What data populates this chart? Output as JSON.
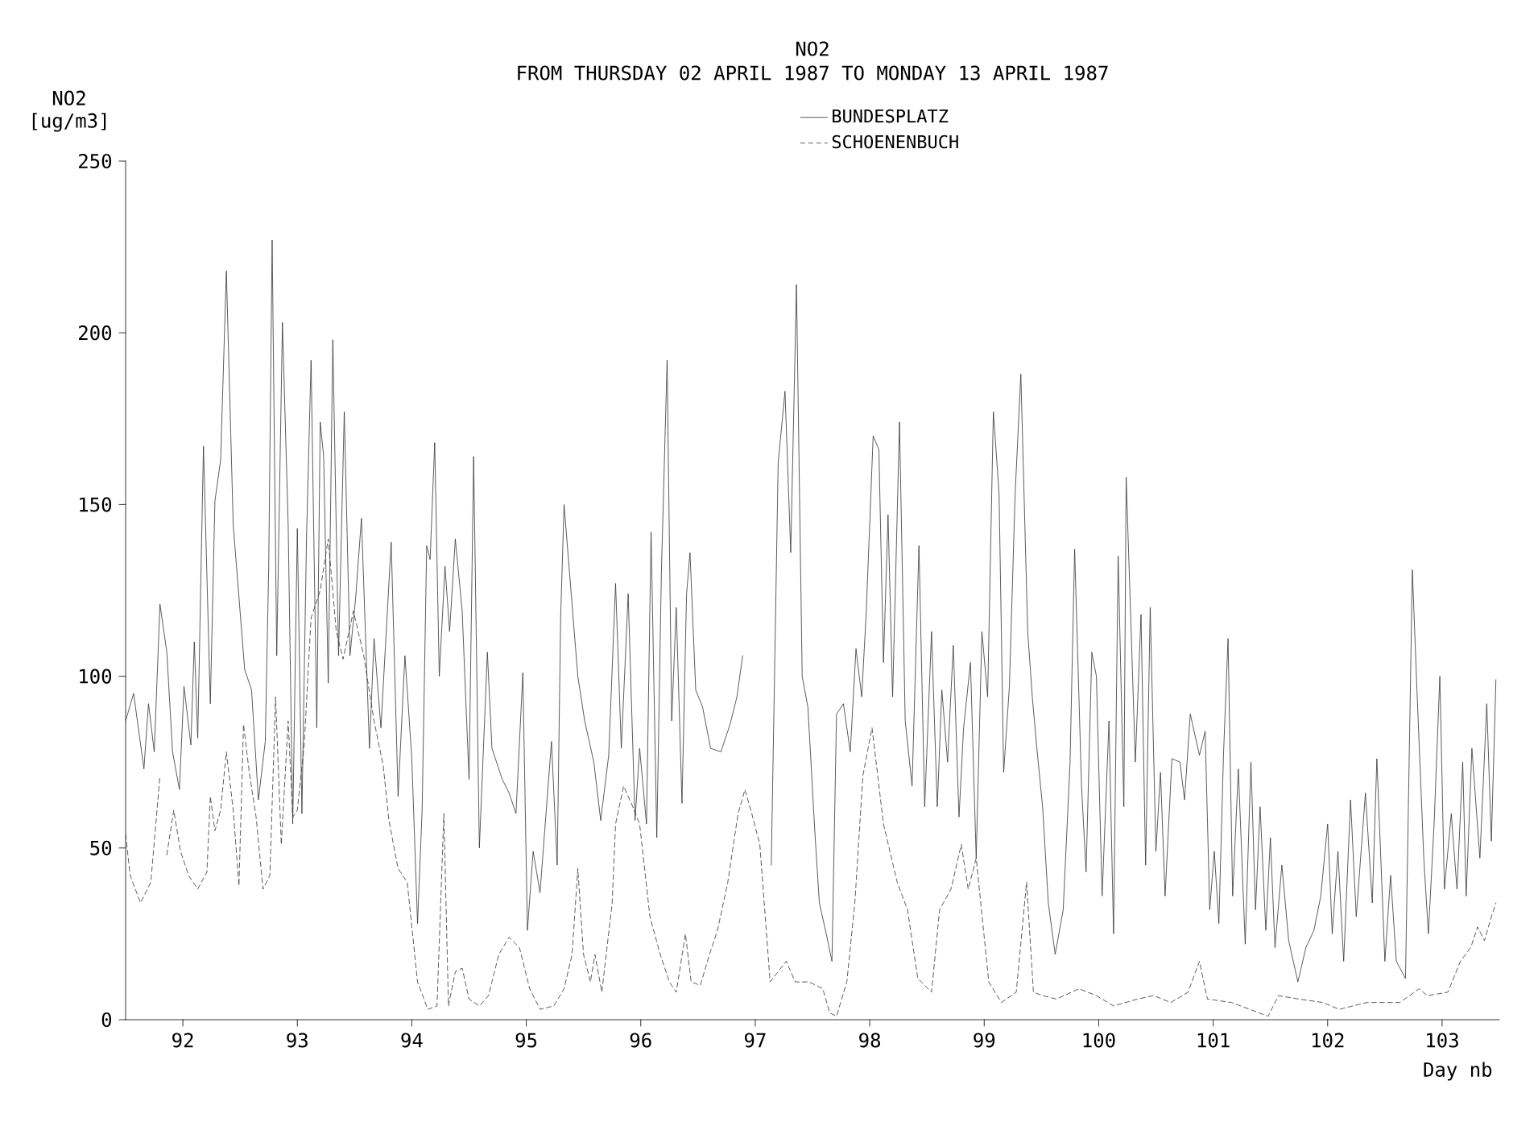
{
  "chart_data": {
    "type": "line",
    "title": "NO2",
    "subtitle": "FROM THURSDAY 02 APRIL 1987 TO MONDAY 13 APRIL 1987",
    "xlabel": "Day nb",
    "ylabel": "NO2 [ug/m3]",
    "xlim": [
      91.5,
      103.5
    ],
    "ylim": [
      0,
      250
    ],
    "xticks": [
      92,
      93,
      94,
      95,
      96,
      97,
      98,
      99,
      100,
      101,
      102,
      103
    ],
    "yticks": [
      0,
      50,
      100,
      150,
      200,
      250
    ],
    "legend": "top",
    "series": [
      {
        "name": "BUNDESPLATZ",
        "color": "#333333",
        "line_style": "solid",
        "x": [
          91.5,
          91.57,
          91.66,
          91.7,
          91.75,
          91.8,
          91.86,
          91.91,
          91.97,
          92.01,
          92.07,
          92.1,
          92.13,
          92.18,
          92.24,
          92.28,
          92.33,
          92.38,
          92.44,
          92.54,
          92.6,
          92.66,
          92.72,
          92.75,
          92.78,
          92.82,
          92.87,
          92.92,
          92.96,
          93.0,
          93.04,
          93.08,
          93.12,
          93.17,
          93.2,
          93.23,
          93.27,
          93.31,
          93.36,
          93.41,
          93.46,
          93.51,
          93.56,
          93.63,
          93.67,
          93.73,
          93.82,
          93.88,
          93.94,
          94.0,
          94.05,
          94.09,
          94.13,
          94.16,
          94.2,
          94.24,
          94.29,
          94.33,
          94.38,
          94.44,
          94.5,
          94.54,
          94.59,
          94.66,
          94.7,
          94.79,
          94.85,
          94.91,
          94.97,
          95.01,
          95.06,
          95.12,
          95.22,
          95.27,
          95.3,
          95.33,
          95.39,
          95.45,
          95.51,
          95.59,
          95.65,
          95.72,
          95.78,
          95.83,
          95.89,
          95.95,
          95.99,
          96.05,
          96.09,
          96.14,
          96.18,
          96.23,
          96.27,
          96.31,
          96.36,
          96.4,
          96.43,
          96.48,
          96.54,
          96.61,
          96.7,
          96.78,
          96.84,
          96.89,
          97.0,
          97.14,
          97.2,
          97.26,
          97.31,
          97.36,
          97.41,
          97.46,
          97.52,
          97.56,
          97.62,
          97.67,
          97.71,
          97.77,
          97.83,
          97.88,
          97.93,
          97.97,
          98.03,
          98.08,
          98.12,
          98.16,
          98.2,
          98.26,
          98.31,
          98.37,
          98.43,
          98.48,
          98.54,
          98.59,
          98.63,
          98.68,
          98.73,
          98.78,
          98.82,
          98.88,
          98.93,
          98.98,
          99.03,
          99.08,
          99.13,
          99.17,
          99.22,
          99.27,
          99.32,
          99.38,
          99.42,
          99.46,
          99.51,
          99.56,
          99.62,
          99.69,
          99.75,
          99.79,
          99.85,
          99.89,
          99.94,
          99.98,
          100.03,
          100.09,
          100.13,
          100.17,
          100.22,
          100.24,
          100.28,
          100.32,
          100.37,
          100.41,
          100.45,
          100.5,
          100.54,
          100.58,
          100.64,
          100.71,
          100.75,
          100.8,
          100.84,
          100.88,
          100.93,
          100.97,
          101.01,
          101.05,
          101.09,
          101.13,
          101.17,
          101.22,
          101.28,
          101.33,
          101.37,
          101.41,
          101.46,
          101.5,
          101.54,
          101.6,
          101.66,
          101.74,
          101.81,
          101.88,
          101.94,
          102.0,
          102.04,
          102.09,
          102.14,
          102.2,
          102.25,
          102.33,
          102.39,
          102.43,
          102.5,
          102.55,
          102.6,
          102.68,
          102.74,
          102.78,
          102.84,
          102.88,
          102.93,
          102.98,
          103.02,
          103.08,
          103.13,
          103.18,
          103.21,
          103.26,
          103.33,
          103.39,
          103.43,
          103.47
        ],
        "values": [
          87,
          95,
          73,
          92,
          78,
          121,
          107,
          78,
          67,
          97,
          80,
          110,
          82,
          167,
          92,
          151,
          163,
          218,
          144,
          102,
          96,
          64,
          81,
          132,
          227,
          106,
          203,
          144,
          57,
          143,
          60,
          140,
          192,
          85,
          174,
          164,
          98,
          198,
          106,
          177,
          106,
          123,
          146,
          79,
          111,
          85,
          139,
          65,
          106,
          76,
          28,
          61,
          138,
          134,
          168,
          100,
          132,
          113,
          140,
          119,
          70,
          164,
          50,
          107,
          79,
          70,
          66,
          60,
          101,
          26,
          49,
          37,
          81,
          45,
          117,
          150,
          125,
          100,
          87,
          75,
          58,
          77,
          127,
          79,
          124,
          58,
          79,
          57,
          142,
          53,
          130,
          192,
          87,
          120,
          63,
          124,
          136,
          96,
          91,
          79,
          78,
          86,
          94,
          106,
          null,
          45,
          162,
          183,
          136,
          214,
          100,
          91,
          55,
          34,
          25,
          17,
          89,
          92,
          78,
          108,
          94,
          119,
          170,
          166,
          104,
          147,
          94,
          174,
          87,
          68,
          138,
          62,
          113,
          62,
          96,
          75,
          109,
          59,
          85,
          104,
          47,
          113,
          94,
          177,
          153,
          72,
          97,
          153,
          188,
          113,
          94,
          79,
          62,
          34,
          19,
          32,
          75,
          137,
          68,
          43,
          107,
          100,
          36,
          87,
          25,
          135,
          62,
          158,
          117,
          75,
          118,
          45,
          120,
          49,
          72,
          36,
          76,
          75,
          64,
          89,
          83,
          77,
          84,
          32,
          49,
          28,
          77,
          111,
          36,
          73,
          22,
          75,
          32,
          62,
          26,
          53,
          21,
          45,
          23,
          11,
          21,
          26,
          36,
          57,
          25,
          49,
          17,
          64,
          30,
          66,
          34,
          76,
          17,
          42,
          17,
          12,
          131,
          96,
          47,
          25,
          57,
          100,
          38,
          60,
          38,
          75,
          36,
          79,
          47,
          92,
          52,
          99
        ]
      },
      {
        "name": "SCHOENENBUCH",
        "color": "#333333",
        "line_style": "dashed",
        "x": [
          91.5,
          91.54,
          91.63,
          91.72,
          91.8,
          91.83,
          91.86,
          91.92,
          91.98,
          92.05,
          92.13,
          92.21,
          92.24,
          92.28,
          92.33,
          92.38,
          92.44,
          92.49,
          92.53,
          92.58,
          92.64,
          92.7,
          92.76,
          92.81,
          92.86,
          92.92,
          92.96,
          93.0,
          93.06,
          93.12,
          93.2,
          93.27,
          93.34,
          93.4,
          93.49,
          93.58,
          93.67,
          93.75,
          93.8,
          93.88,
          93.96,
          94.05,
          94.14,
          94.22,
          94.28,
          94.32,
          94.38,
          94.44,
          94.5,
          94.59,
          94.67,
          94.76,
          94.85,
          94.94,
          95.03,
          95.12,
          95.24,
          95.33,
          95.4,
          95.45,
          95.5,
          95.56,
          95.6,
          95.66,
          95.75,
          95.78,
          95.85,
          95.93,
          95.99,
          96.08,
          96.17,
          96.25,
          96.31,
          96.39,
          96.44,
          96.52,
          96.6,
          96.67,
          96.76,
          96.85,
          96.91,
          96.97,
          97.04,
          97.13,
          97.2,
          97.27,
          97.35,
          97.47,
          97.59,
          97.65,
          97.71,
          97.8,
          97.87,
          97.94,
          98.02,
          98.12,
          98.24,
          98.33,
          98.42,
          98.54,
          98.61,
          98.71,
          98.8,
          98.86,
          98.93,
          99.04,
          99.15,
          99.28,
          99.37,
          99.43,
          99.51,
          99.63,
          99.83,
          99.98,
          100.13,
          100.34,
          100.48,
          100.63,
          100.78,
          100.88,
          100.95,
          101.16,
          101.4,
          101.48,
          101.57,
          101.75,
          101.96,
          102.1,
          102.34,
          102.63,
          102.8,
          102.87,
          103.05,
          103.16,
          103.25,
          103.31,
          103.37,
          103.43,
          103.47
        ],
        "values": [
          54,
          42,
          34,
          40,
          71,
          null,
          48,
          61,
          49,
          42,
          38,
          43,
          65,
          55,
          61,
          78,
          61,
          39,
          86,
          72,
          59,
          38,
          42,
          94,
          51,
          87,
          59,
          61,
          80,
          117,
          125,
          140,
          113,
          105,
          119,
          106,
          87,
          74,
          58,
          44,
          40,
          11,
          3,
          4,
          60,
          4,
          14,
          15,
          6,
          4,
          7,
          19,
          24,
          21,
          9,
          3,
          4,
          9,
          19,
          44,
          19,
          11,
          19,
          8,
          34,
          57,
          68,
          62,
          57,
          30,
          19,
          11,
          8,
          25,
          11,
          10,
          19,
          26,
          40,
          60,
          67,
          60,
          51,
          11,
          14,
          17,
          11,
          11,
          9,
          2,
          1,
          11,
          34,
          71,
          85,
          57,
          40,
          32,
          12,
          8,
          32,
          38,
          51,
          38,
          47,
          11,
          5,
          8,
          40,
          8,
          7,
          6,
          9,
          7,
          4,
          6,
          7,
          5,
          8,
          17,
          6,
          5,
          2,
          1,
          7,
          6,
          5,
          3,
          5,
          5,
          9,
          7,
          8,
          17,
          21,
          27,
          23,
          30,
          34
        ]
      }
    ]
  }
}
